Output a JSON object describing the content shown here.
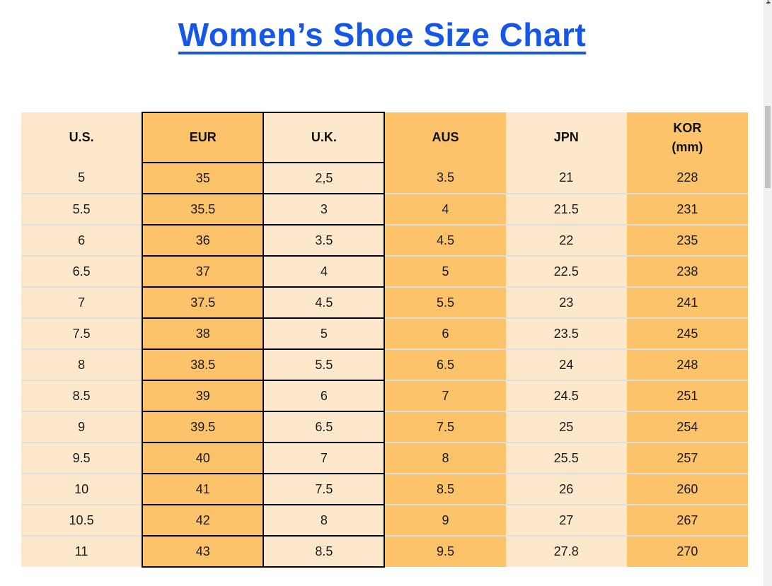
{
  "page": {
    "title": "Women’s Shoe Size Chart"
  },
  "colors": {
    "title_blue": "#1757e8",
    "header_blue": "#4689c6",
    "cell_orange": "#fdc36b",
    "cell_cream": "#fee8cb",
    "grid_black": "#000000",
    "row_separator_gray": "#dedede",
    "scrollbar_track": "#f0f0f0",
    "scrollbar_thumb": "#c2c2c2"
  },
  "table": {
    "headers": [
      "U.S.",
      "EUR",
      "U.K.",
      "AUS",
      "JPN",
      "KOR\n(mm)"
    ],
    "rows": [
      [
        "5",
        "35",
        "2,5",
        "3.5",
        "21",
        "228"
      ],
      [
        "5.5",
        "35.5",
        "3",
        "4",
        "21.5",
        "231"
      ],
      [
        "6",
        "36",
        "3.5",
        "4.5",
        "22",
        "235"
      ],
      [
        "6.5",
        "37",
        "4",
        "5",
        "22.5",
        "238"
      ],
      [
        "7",
        "37.5",
        "4.5",
        "5.5",
        "23",
        "241"
      ],
      [
        "7.5",
        "38",
        "5",
        "6",
        "23.5",
        "245"
      ],
      [
        "8",
        "38.5",
        "5.5",
        "6.5",
        "24",
        "248"
      ],
      [
        "8.5",
        "39",
        "6",
        "7",
        "24.5",
        "251"
      ],
      [
        "9",
        "39.5",
        "6.5",
        "7.5",
        "25",
        "254"
      ],
      [
        "9.5",
        "40",
        "7",
        "8",
        "25.5",
        "257"
      ],
      [
        "10",
        "41",
        "7.5",
        "8.5",
        "26",
        "260"
      ],
      [
        "10.5",
        "42",
        "8",
        "9",
        "27",
        "267"
      ],
      [
        "11",
        "43",
        "8.5",
        "9.5",
        "27.8",
        "270"
      ]
    ]
  }
}
